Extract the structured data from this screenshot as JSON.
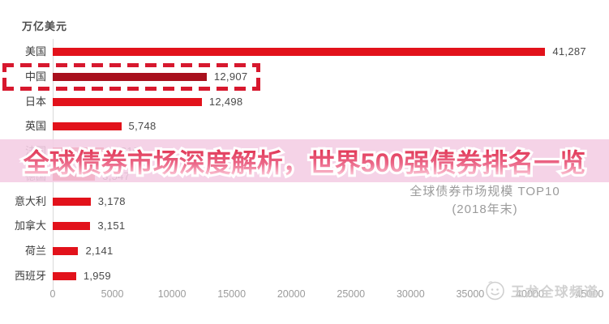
{
  "page": {
    "bg": "#ffffff"
  },
  "chart": {
    "unit_label": "万亿美元",
    "banner": {
      "title": "全球债券市场深度解析，世界500强债券排名一览"
    },
    "annotation": {
      "line1": "全球债券市场规模 TOP10",
      "line2": "(2018年末)"
    },
    "watermark": {
      "icon": "smiley-logo-icon",
      "text": "王龙全球频道"
    },
    "colors": {
      "bar": "#e2121b",
      "bar_highlight": "#a8101d",
      "highlight_box_border": "#d7182e",
      "banner_bg": "rgba(244,205,228,0.88)",
      "banner_text": "#e6486a",
      "axis_text": "#9b9b9b",
      "label_text": "#3c3c3c",
      "value_text": "#4a4a4a"
    }
  },
  "chart_data": {
    "type": "bar",
    "orientation": "horizontal",
    "title": "全球债券市场规模 TOP10 (2018年末)",
    "unit": "万亿美元",
    "categories": [
      "美国",
      "中国",
      "日本",
      "英国",
      "法国",
      "德国",
      "意大利",
      "加拿大",
      "荷兰",
      "西班牙"
    ],
    "values": [
      41287,
      12907,
      12498,
      5748,
      4310,
      3547,
      3178,
      3151,
      2141,
      1959
    ],
    "value_labels": [
      "41,287",
      "12,907",
      "12,498",
      "5,748",
      "4,310",
      "3,547",
      "3,178",
      "3,151",
      "2,141",
      "1,959"
    ],
    "highlight_index": 1,
    "highlight_style": "dashed-red-box",
    "xlim": [
      0,
      45000
    ],
    "x_ticks": [
      0,
      5000,
      10000,
      15000,
      20000,
      25000,
      30000,
      35000,
      40000,
      45000
    ],
    "grid": false,
    "legend": false
  }
}
